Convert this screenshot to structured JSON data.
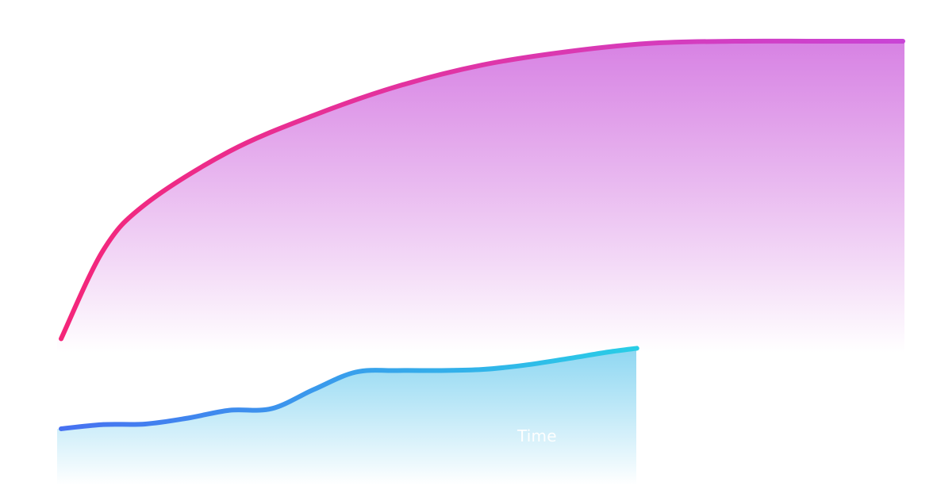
{
  "chart_data": {
    "type": "area",
    "title": "",
    "xlabel": "Time",
    "ylabel": "",
    "grid": false,
    "legend": "none",
    "xlim": [
      0,
      100
    ],
    "ylim": [
      0,
      100
    ],
    "series": [
      {
        "color_start": "#f4267a",
        "color_end": "#c944d6",
        "fill_top": "#d57be2",
        "fill_bottom": "#ffffff",
        "x": [
          0,
          5,
          10,
          20,
          30,
          40,
          50,
          60,
          70,
          80,
          90,
          100
        ],
        "values": [
          43.8,
          60.5,
          69.2,
          79.2,
          86.0,
          91.5,
          95.5,
          98.0,
          99.6,
          100.0,
          100.0,
          100.0
        ]
      },
      {
        "color_start": "#4771f1",
        "color_end": "#29cde6",
        "fill_top": "#88d5f1",
        "fill_bottom": "#ffffff",
        "x": [
          0,
          5,
          10,
          15,
          20,
          25,
          30,
          35,
          40,
          45,
          50,
          55,
          60,
          65,
          68.4
        ],
        "values": [
          26.8,
          27.6,
          27.7,
          28.8,
          30.3,
          30.6,
          34.2,
          37.5,
          37.8,
          37.8,
          38.0,
          38.8,
          40.0,
          41.3,
          42.0
        ]
      }
    ]
  }
}
